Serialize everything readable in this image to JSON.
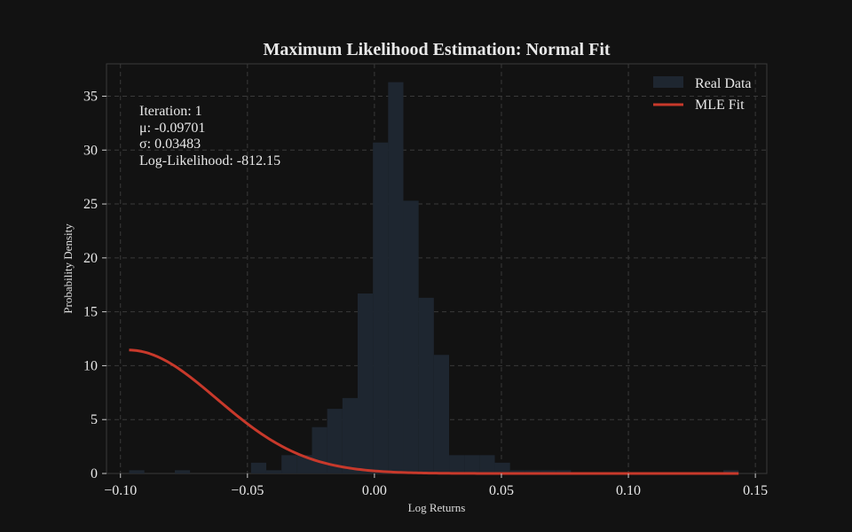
{
  "chart_data": {
    "type": "bar",
    "title": "Maximum Likelihood Estimation: Normal Fit",
    "xlabel": "Log Returns",
    "ylabel": "Probability Density",
    "xlim": [
      -0.1055,
      0.1545
    ],
    "ylim": [
      0,
      38
    ],
    "x_ticks": [
      -0.1,
      -0.05,
      0.0,
      0.05,
      0.1,
      0.15
    ],
    "x_tick_labels": [
      "−0.10",
      "−0.05",
      "0.00",
      "0.05",
      "0.10",
      "0.15"
    ],
    "y_ticks": [
      0,
      5,
      10,
      15,
      20,
      25,
      30,
      35
    ],
    "y_tick_labels": [
      "0",
      "5",
      "10",
      "15",
      "20",
      "25",
      "30",
      "35"
    ],
    "grid": true,
    "legend_placement": "top-right",
    "legend": [
      "Real Data",
      "MLE Fit"
    ],
    "histogram": {
      "name": "Real Data",
      "color": "#1e2630",
      "bin_start": -0.0966,
      "bin_width": 0.006,
      "values": [
        0.3,
        0,
        0,
        0.3,
        0,
        0,
        0,
        0,
        1.0,
        0.3,
        1.7,
        1.7,
        4.3,
        6.0,
        7.0,
        16.7,
        30.7,
        36.3,
        25.3,
        16.3,
        11.0,
        1.7,
        1.7,
        1.7,
        1.0,
        0.3,
        0.3,
        0.3,
        0.3,
        0,
        0,
        0,
        0,
        0,
        0,
        0,
        0,
        0,
        0,
        0.3
      ]
    },
    "fit": {
      "name": "MLE Fit",
      "color": "#c8392b",
      "distribution": "normal",
      "mu": -0.09701,
      "sigma": 0.03483,
      "x_range": [
        -0.0966,
        0.1434
      ]
    },
    "annotation": {
      "iteration": "Iteration: 1",
      "mu": "μ: -0.09701",
      "sigma": "σ: 0.03483",
      "loglik": "Log-Likelihood: -812.15"
    }
  }
}
